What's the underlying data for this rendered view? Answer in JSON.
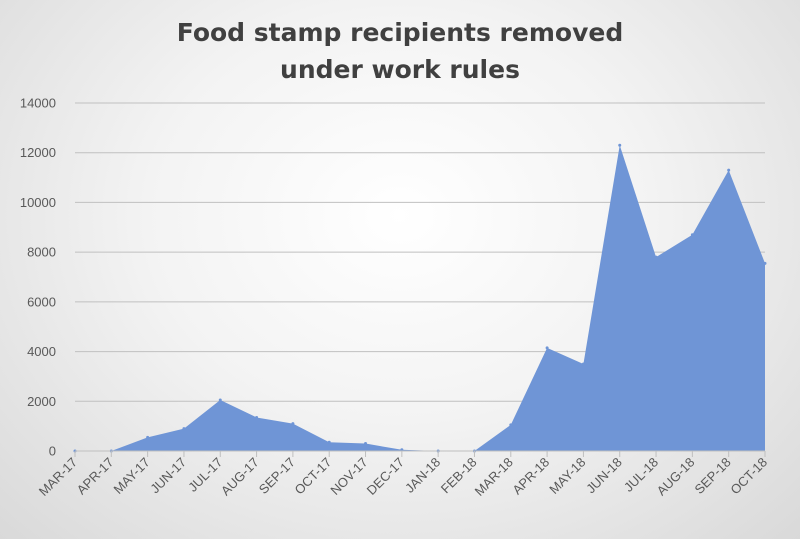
{
  "chart_data": {
    "type": "area",
    "title": "Food stamp recipients removed under work rules",
    "title_lines": [
      "Food stamp recipients removed",
      "under work rules"
    ],
    "xlabel": "",
    "ylabel": "",
    "ylim": [
      0,
      14000
    ],
    "yticks": [
      0,
      2000,
      4000,
      6000,
      8000,
      10000,
      12000,
      14000
    ],
    "grid": true,
    "legend": "none",
    "fill_color": "#6f95d6",
    "gridline_color": "#c0c0c0",
    "categories": [
      "MAR-17",
      "APR-17",
      "MAY-17",
      "JUN-17",
      "JUL-17",
      "AUG-17",
      "SEP-17",
      "OCT-17",
      "NOV-17",
      "DEC-17",
      "JAN-18",
      "FEB-18",
      "MAR-18",
      "APR-18",
      "MAY-18",
      "JUN-18",
      "JUL-18",
      "AUG-18",
      "SEP-18",
      "OCT-18"
    ],
    "values": [
      0,
      0,
      550,
      900,
      2050,
      1350,
      1100,
      350,
      300,
      50,
      0,
      0,
      1050,
      4150,
      3500,
      12300,
      7800,
      8700,
      11300,
      7550
    ]
  }
}
